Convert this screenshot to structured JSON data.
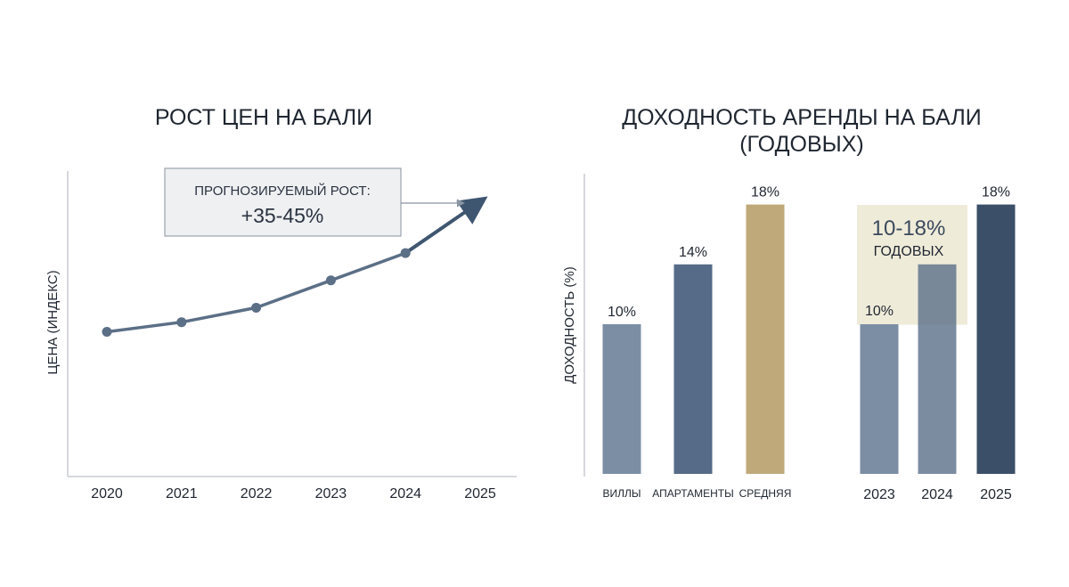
{
  "chart_data": [
    {
      "type": "line",
      "title": "РОСТ ЦЕН НА БАЛИ",
      "ylabel": "ЦЕНА (ИНДЕКС)",
      "xlabel": "",
      "categories": [
        "2020",
        "2021",
        "2022",
        "2023",
        "2024",
        "2025"
      ],
      "series": [
        {
          "values": [
            100,
            106,
            115,
            132,
            149,
            182
          ]
        }
      ],
      "ylim": [
        10,
        200
      ],
      "grid": false,
      "callout": {
        "line1": "ПРОГНОЗИРУЕМЫЙ РОСТ:",
        "line2": "+35-45%"
      },
      "colors": {
        "line": "#5b6f86",
        "forecast": "#3f5670",
        "axis": "#c8ccd2"
      }
    },
    {
      "type": "bar",
      "title_line1": "ДОХОДНОСТЬ АРЕНДЫ НА БАЛИ",
      "title_line2": "(ГОДОВЫХ)",
      "ylabel": "ДОХОДНОСТЬ (%)",
      "xlabel": "",
      "categories": [
        "ВИЛЛЫ",
        "АПАРТАМЕНТЫ",
        "СРЕДНЯЯ",
        "2023",
        "2024",
        "2025"
      ],
      "values": [
        10,
        14,
        18,
        10,
        14,
        18
      ],
      "value_labels": [
        "10%",
        "14%",
        "18%",
        "10%",
        "",
        "18%"
      ],
      "ylim": [
        0,
        20
      ],
      "grid": false,
      "highlight": {
        "line1": "10-18%",
        "line2": "ГОДОВЫХ",
        "range": [
          10,
          18
        ]
      },
      "colors": {
        "bars": [
          "#7b8ea4",
          "#566b87",
          "#bfa97a",
          "#7b8ea4",
          "#566b87",
          "#3b4f69"
        ],
        "highlight": "#e9e3cb",
        "axis": "#c8ccd2"
      }
    }
  ]
}
